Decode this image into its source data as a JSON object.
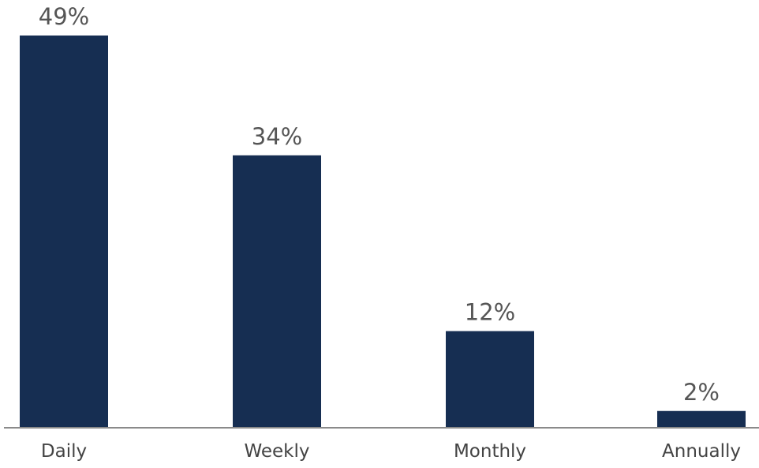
{
  "colors": {
    "bar": "#162e52",
    "axis": "#8a8a8a",
    "value_text": "#555555",
    "tick_text": "#444444"
  },
  "chart_data": {
    "type": "bar",
    "categories": [
      "Daily",
      "Weekly",
      "Monthly",
      "Annually"
    ],
    "values": [
      49,
      34,
      12,
      2
    ],
    "value_labels": [
      "49%",
      "34%",
      "12%",
      "2%"
    ],
    "unit": "%",
    "title": "",
    "xlabel": "",
    "ylabel": "",
    "ylim": [
      0,
      49
    ],
    "grid": false,
    "legend": "none"
  }
}
